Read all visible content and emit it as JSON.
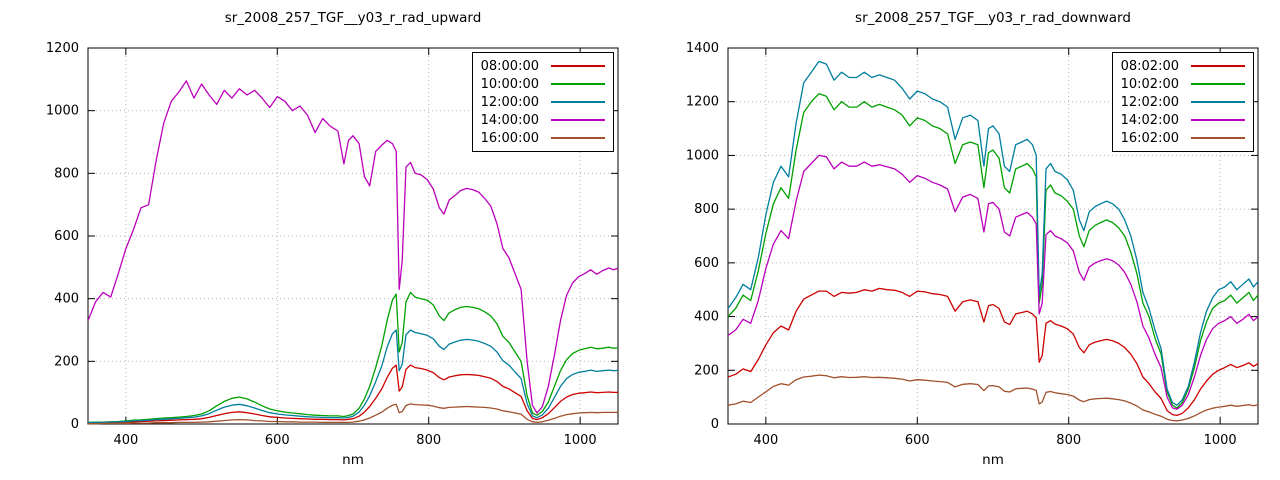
{
  "page": {
    "background": "#ffffff"
  },
  "chart_data": [
    {
      "type": "line",
      "title": "sr_2008_257_TGF__y03_r_rad_upward",
      "xlabel": "nm",
      "ylabel": "",
      "xlim": [
        350,
        1050
      ],
      "ylim": [
        0,
        1200
      ],
      "xticks": [
        400,
        600,
        800,
        1000
      ],
      "yticks": [
        0,
        200,
        400,
        600,
        800,
        1000,
        1200
      ],
      "grid": true,
      "legend_position": "top-right",
      "x": [
        350,
        360,
        370,
        380,
        390,
        400,
        410,
        420,
        430,
        440,
        450,
        460,
        470,
        480,
        490,
        500,
        510,
        520,
        530,
        540,
        550,
        560,
        570,
        580,
        590,
        600,
        610,
        620,
        630,
        640,
        650,
        660,
        670,
        680,
        688,
        694,
        700,
        708,
        715,
        722,
        730,
        738,
        745,
        752,
        757,
        761,
        765,
        770,
        776,
        782,
        790,
        798,
        806,
        814,
        820,
        827,
        835,
        842,
        850,
        858,
        866,
        874,
        882,
        890,
        898,
        906,
        914,
        922,
        930,
        937,
        943,
        950,
        958,
        966,
        974,
        982,
        990,
        998,
        1006,
        1014,
        1022,
        1030,
        1038,
        1044,
        1050
      ],
      "series": [
        {
          "name": "08:00:00",
          "color": "#cc0000",
          "values": [
            3,
            3,
            4,
            4,
            5,
            6,
            7,
            8,
            9,
            10,
            11,
            12,
            13,
            14,
            15,
            17,
            21,
            27,
            33,
            37,
            39,
            36,
            32,
            27,
            23,
            21,
            19,
            18,
            17,
            16,
            15,
            15,
            14,
            14,
            13,
            15,
            17,
            25,
            38,
            56,
            82,
            112,
            148,
            178,
            188,
            105,
            118,
            175,
            188,
            180,
            177,
            172,
            164,
            148,
            141,
            150,
            154,
            157,
            158,
            157,
            155,
            151,
            146,
            136,
            120,
            112,
            100,
            88,
            42,
            18,
            14,
            20,
            33,
            52,
            72,
            86,
            94,
            98,
            100,
            102,
            100,
            101,
            102,
            101,
            101
          ]
        },
        {
          "name": "10:00:00",
          "color": "#00a000",
          "values": [
            5,
            6,
            6,
            7,
            8,
            10,
            12,
            13,
            15,
            17,
            19,
            20,
            22,
            24,
            27,
            32,
            42,
            58,
            72,
            82,
            86,
            80,
            70,
            58,
            48,
            42,
            38,
            35,
            33,
            30,
            28,
            27,
            26,
            26,
            24,
            27,
            32,
            50,
            80,
            120,
            180,
            250,
            330,
            395,
            415,
            230,
            260,
            390,
            420,
            405,
            400,
            395,
            380,
            345,
            330,
            355,
            365,
            372,
            375,
            372,
            368,
            358,
            345,
            320,
            280,
            260,
            230,
            200,
            90,
            35,
            28,
            40,
            70,
            120,
            170,
            205,
            225,
            235,
            240,
            245,
            240,
            242,
            245,
            242,
            243
          ]
        },
        {
          "name": "12:00:00",
          "color": "#007e9e",
          "values": [
            4,
            5,
            5,
            6,
            7,
            8,
            10,
            11,
            12,
            14,
            15,
            17,
            18,
            20,
            22,
            26,
            33,
            44,
            54,
            60,
            63,
            58,
            51,
            43,
            36,
            32,
            29,
            27,
            25,
            23,
            22,
            21,
            20,
            20,
            19,
            21,
            25,
            38,
            60,
            90,
            135,
            185,
            245,
            288,
            300,
            170,
            190,
            285,
            300,
            292,
            288,
            283,
            272,
            248,
            238,
            255,
            262,
            267,
            270,
            268,
            264,
            257,
            248,
            230,
            202,
            188,
            166,
            145,
            65,
            26,
            20,
            29,
            50,
            85,
            120,
            145,
            158,
            165,
            168,
            172,
            168,
            170,
            172,
            170,
            171
          ]
        },
        {
          "name": "14:00:00",
          "color": "#bb00bb",
          "values": [
            330,
            390,
            420,
            405,
            480,
            560,
            620,
            690,
            700,
            840,
            960,
            1030,
            1060,
            1095,
            1040,
            1085,
            1050,
            1020,
            1065,
            1040,
            1070,
            1050,
            1065,
            1040,
            1010,
            1045,
            1030,
            1000,
            1015,
            985,
            930,
            975,
            950,
            935,
            830,
            905,
            920,
            895,
            790,
            760,
            870,
            890,
            905,
            895,
            870,
            430,
            520,
            820,
            835,
            800,
            795,
            780,
            750,
            690,
            670,
            715,
            730,
            745,
            752,
            748,
            740,
            720,
            695,
            640,
            560,
            530,
            480,
            430,
            200,
            60,
            35,
            55,
            120,
            220,
            330,
            410,
            450,
            470,
            480,
            492,
            478,
            490,
            498,
            492,
            497
          ]
        },
        {
          "name": "16:00:00",
          "color": "#a0522d",
          "values": [
            1,
            1,
            2,
            2,
            2,
            2,
            3,
            3,
            3,
            4,
            4,
            4,
            5,
            5,
            5,
            6,
            7,
            9,
            11,
            13,
            14,
            13,
            11,
            10,
            8,
            8,
            7,
            7,
            6,
            6,
            6,
            5,
            5,
            5,
            5,
            5,
            6,
            9,
            13,
            19,
            28,
            38,
            50,
            60,
            63,
            36,
            40,
            59,
            64,
            62,
            61,
            60,
            57,
            52,
            50,
            53,
            54,
            55,
            56,
            55,
            54,
            53,
            51,
            48,
            42,
            39,
            35,
            31,
            15,
            7,
            5,
            7,
            12,
            18,
            25,
            30,
            33,
            35,
            36,
            37,
            36,
            37,
            37,
            37,
            37
          ]
        }
      ]
    },
    {
      "type": "line",
      "title": "sr_2008_257_TGF__y03_r_rad_downward",
      "xlabel": "nm",
      "ylabel": "",
      "xlim": [
        350,
        1050
      ],
      "ylim": [
        0,
        1400
      ],
      "xticks": [
        400,
        600,
        800,
        1000
      ],
      "yticks": [
        0,
        200,
        400,
        600,
        800,
        1000,
        1200,
        1400
      ],
      "grid": true,
      "legend_position": "top-right",
      "x": [
        350,
        360,
        370,
        380,
        390,
        400,
        410,
        420,
        430,
        440,
        450,
        460,
        470,
        480,
        490,
        500,
        510,
        520,
        530,
        540,
        550,
        560,
        570,
        580,
        590,
        600,
        610,
        620,
        630,
        640,
        650,
        660,
        670,
        680,
        688,
        694,
        700,
        708,
        715,
        722,
        730,
        738,
        745,
        752,
        757,
        761,
        765,
        770,
        776,
        782,
        790,
        798,
        806,
        814,
        820,
        827,
        835,
        842,
        850,
        858,
        866,
        874,
        882,
        890,
        898,
        906,
        914,
        922,
        930,
        937,
        943,
        950,
        958,
        966,
        974,
        982,
        990,
        998,
        1006,
        1014,
        1022,
        1030,
        1038,
        1044,
        1050
      ],
      "series": [
        {
          "name": "08:02:00",
          "color": "#cc0000",
          "values": [
            175,
            185,
            205,
            195,
            240,
            295,
            340,
            365,
            350,
            420,
            465,
            480,
            495,
            495,
            475,
            490,
            487,
            490,
            500,
            495,
            505,
            500,
            498,
            490,
            475,
            495,
            492,
            485,
            482,
            475,
            420,
            455,
            462,
            455,
            380,
            440,
            445,
            430,
            380,
            370,
            410,
            415,
            420,
            410,
            395,
            230,
            255,
            375,
            385,
            372,
            365,
            355,
            335,
            285,
            265,
            295,
            305,
            310,
            315,
            310,
            300,
            285,
            260,
            225,
            175,
            150,
            120,
            95,
            50,
            35,
            32,
            40,
            60,
            90,
            130,
            160,
            185,
            200,
            210,
            222,
            210,
            218,
            228,
            215,
            225
          ]
        },
        {
          "name": "10:02:00",
          "color": "#00a000",
          "values": [
            400,
            430,
            480,
            460,
            570,
            710,
            820,
            880,
            840,
            1020,
            1160,
            1200,
            1230,
            1220,
            1170,
            1200,
            1180,
            1180,
            1200,
            1180,
            1190,
            1180,
            1170,
            1150,
            1110,
            1140,
            1130,
            1110,
            1100,
            1080,
            970,
            1040,
            1050,
            1040,
            880,
            1010,
            1020,
            990,
            880,
            860,
            950,
            960,
            970,
            950,
            920,
            450,
            520,
            870,
            890,
            860,
            850,
            830,
            800,
            700,
            660,
            720,
            740,
            750,
            760,
            750,
            730,
            700,
            640,
            560,
            450,
            400,
            320,
            260,
            120,
            70,
            60,
            80,
            130,
            210,
            310,
            380,
            430,
            450,
            460,
            480,
            450,
            470,
            490,
            460,
            480
          ]
        },
        {
          "name": "12:02:00",
          "color": "#007e9e",
          "values": [
            430,
            470,
            520,
            500,
            620,
            780,
            900,
            960,
            920,
            1120,
            1270,
            1310,
            1350,
            1340,
            1280,
            1310,
            1290,
            1290,
            1310,
            1290,
            1300,
            1290,
            1280,
            1250,
            1210,
            1240,
            1230,
            1210,
            1200,
            1180,
            1060,
            1140,
            1150,
            1130,
            960,
            1100,
            1110,
            1080,
            960,
            940,
            1040,
            1050,
            1060,
            1040,
            1000,
            480,
            560,
            950,
            970,
            940,
            930,
            910,
            870,
            760,
            720,
            790,
            810,
            820,
            830,
            820,
            800,
            760,
            700,
            610,
            490,
            430,
            350,
            280,
            130,
            80,
            70,
            90,
            140,
            230,
            340,
            420,
            470,
            500,
            510,
            530,
            500,
            520,
            540,
            510,
            530
          ]
        },
        {
          "name": "14:02:00",
          "color": "#bb00bb",
          "values": [
            330,
            350,
            390,
            375,
            460,
            580,
            670,
            720,
            690,
            830,
            940,
            970,
            1000,
            995,
            950,
            975,
            960,
            960,
            975,
            960,
            965,
            958,
            950,
            930,
            900,
            925,
            915,
            900,
            890,
            875,
            790,
            845,
            855,
            840,
            715,
            820,
            825,
            800,
            715,
            700,
            770,
            780,
            788,
            770,
            745,
            410,
            450,
            705,
            720,
            700,
            690,
            675,
            645,
            565,
            535,
            585,
            600,
            608,
            615,
            608,
            592,
            565,
            520,
            455,
            365,
            320,
            260,
            210,
            100,
            60,
            55,
            70,
            110,
            175,
            255,
            315,
            355,
            375,
            385,
            400,
            375,
            390,
            408,
            385,
            400
          ]
        },
        {
          "name": "16:02:00",
          "color": "#a0522d",
          "values": [
            70,
            75,
            85,
            80,
            100,
            120,
            140,
            150,
            145,
            165,
            175,
            178,
            182,
            180,
            172,
            176,
            173,
            174,
            176,
            173,
            174,
            172,
            170,
            167,
            160,
            165,
            163,
            160,
            158,
            155,
            138,
            148,
            150,
            147,
            124,
            142,
            143,
            138,
            122,
            119,
            131,
            133,
            134,
            130,
            125,
            75,
            82,
            118,
            121,
            116,
            113,
            110,
            104,
            89,
            83,
            91,
            94,
            95,
            96,
            94,
            91,
            86,
            78,
            67,
            52,
            45,
            36,
            29,
            18,
            13,
            12,
            15,
            21,
            30,
            42,
            52,
            59,
            63,
            66,
            70,
            66,
            69,
            72,
            68,
            71
          ]
        }
      ]
    }
  ]
}
